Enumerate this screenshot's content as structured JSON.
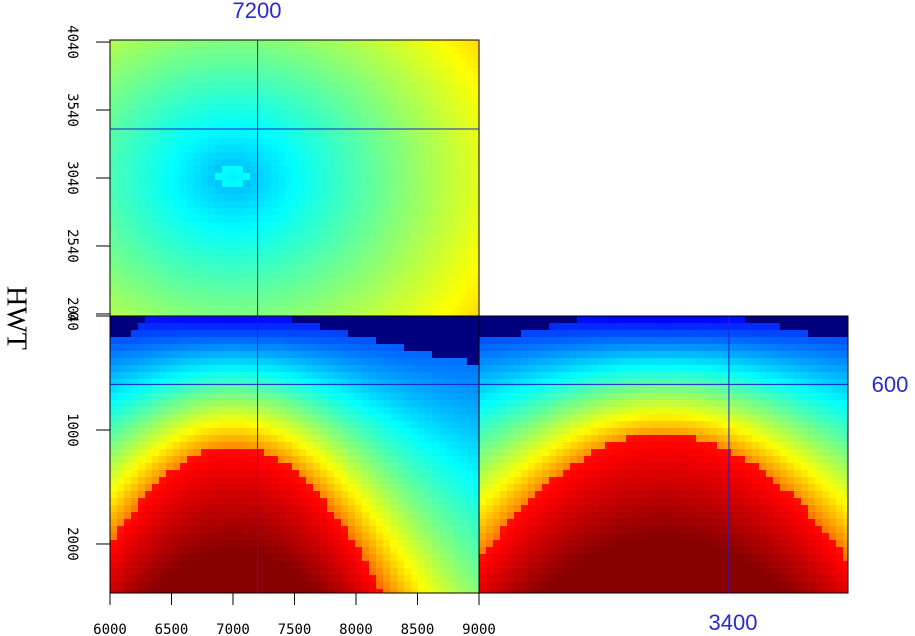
{
  "axis_title": "HWT",
  "slice": {
    "x": 7200,
    "y": 3400,
    "z": 600
  },
  "x_axis": {
    "lim": [
      6000,
      9000
    ],
    "ticks": [
      6000,
      6500,
      7000,
      7500,
      8000,
      8500,
      9000
    ]
  },
  "y_axis": {
    "lim": [
      2025,
      4055
    ],
    "ticks": [
      2040,
      2540,
      3040,
      3540,
      4040
    ]
  },
  "z_axis": {
    "lim": [
      0,
      2430
    ],
    "ticks": [
      0,
      1000,
      2000
    ]
  }
}
